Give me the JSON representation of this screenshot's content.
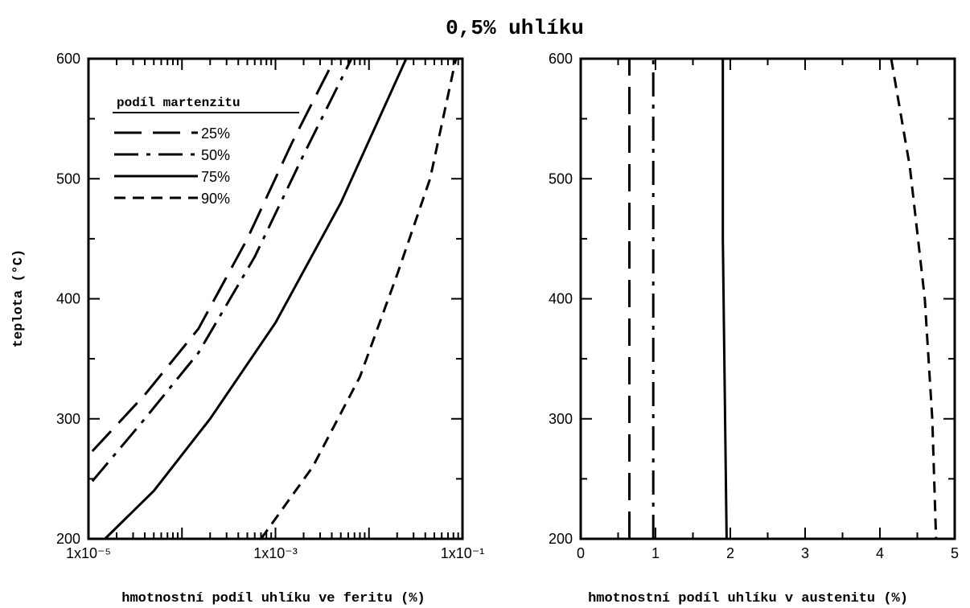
{
  "chart_data": [
    {
      "type": "line",
      "title": "0,5% uhlíku",
      "xlabel": "hmotnostní podíl uhlíku ve feritu (%)",
      "ylabel": "teplota (°C)",
      "xscale": "log",
      "xlim": [
        1e-05,
        0.1
      ],
      "ylim": [
        200,
        600
      ],
      "xticks": [
        1e-05,
        0.001,
        0.1
      ],
      "xtick_labels": [
        "1x10⁻⁵",
        "1x10⁻³",
        "1x10⁻¹"
      ],
      "yticks": [
        200,
        300,
        400,
        500,
        600
      ],
      "ytick_labels": [
        "200",
        "300",
        "400",
        "500",
        "600"
      ],
      "legend": {
        "title": "podíl martenzitu",
        "placement": "top-left",
        "entries": [
          "25%",
          "50%",
          "75%",
          "90%"
        ]
      },
      "series": [
        {
          "name": "25%",
          "style": "long-dash",
          "x": [
            1.1e-05,
            4e-05,
            0.00015,
            0.0005,
            0.0015,
            0.0043
          ],
          "y": [
            273,
            320,
            375,
            450,
            530,
            600
          ]
        },
        {
          "name": "50%",
          "style": "dash-dot",
          "x": [
            1.1e-05,
            4e-05,
            0.00015,
            0.0006,
            0.002,
            0.0065
          ],
          "y": [
            248,
            300,
            355,
            435,
            520,
            600
          ]
        },
        {
          "name": "75%",
          "style": "solid",
          "x": [
            1.5e-05,
            5e-05,
            0.0002,
            0.001,
            0.005,
            0.025
          ],
          "y": [
            200,
            240,
            300,
            380,
            480,
            600
          ]
        },
        {
          "name": "90%",
          "style": "short-dash",
          "x": [
            0.0007,
            0.0025,
            0.008,
            0.02,
            0.045,
            0.085
          ],
          "y": [
            200,
            260,
            335,
            420,
            500,
            600
          ]
        }
      ]
    },
    {
      "type": "line",
      "xlabel": "hmotnostní podíl uhlíku v austenitu (%)",
      "xscale": "linear",
      "xlim": [
        0,
        5
      ],
      "ylim": [
        200,
        600
      ],
      "xticks": [
        0,
        1,
        2,
        3,
        4,
        5
      ],
      "xtick_labels": [
        "0",
        "1",
        "2",
        "3",
        "4",
        "5"
      ],
      "yticks": [
        200,
        300,
        400,
        500,
        600
      ],
      "ytick_labels": [
        "200",
        "300",
        "400",
        "500",
        "600"
      ],
      "series": [
        {
          "name": "25%",
          "style": "long-dash",
          "x": [
            0.65,
            0.65
          ],
          "y": [
            200,
            600
          ]
        },
        {
          "name": "50%",
          "style": "dash-dot",
          "x": [
            0.97,
            0.97
          ],
          "y": [
            200,
            600
          ]
        },
        {
          "name": "75%",
          "style": "solid",
          "x": [
            1.9,
            1.9,
            1.93,
            1.95
          ],
          "y": [
            600,
            450,
            300,
            200
          ]
        },
        {
          "name": "90%",
          "style": "short-dash",
          "x": [
            4.15,
            4.4,
            4.6,
            4.7,
            4.75
          ],
          "y": [
            600,
            510,
            400,
            300,
            200
          ]
        }
      ]
    }
  ]
}
